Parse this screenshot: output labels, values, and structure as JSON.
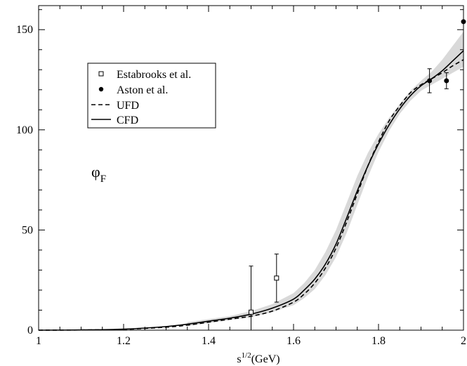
{
  "chart_data": {
    "type": "line",
    "title": "",
    "xlabel": {
      "base": "s",
      "sup": "1/2",
      "rest": "(GeV)"
    },
    "ylabel": "",
    "annotation": {
      "base": "φ",
      "sub": "F"
    },
    "xlim": [
      1.0,
      2.0
    ],
    "ylim": [
      0,
      162
    ],
    "xticks": [
      1,
      1.2,
      1.4,
      1.6,
      1.8,
      2
    ],
    "xtick_labels": [
      "1",
      "1.2",
      "1.4",
      "1.6",
      "1.8",
      "2"
    ],
    "yticks": [
      0,
      50,
      100,
      150
    ],
    "ytick_labels": [
      "0",
      "50",
      "100",
      "150"
    ],
    "grid": false,
    "legend_position": "top-left",
    "colors": {
      "line": "#000000",
      "band": "#d9d9d9"
    },
    "series": [
      {
        "name": "Estabrooks et al.",
        "kind": "points",
        "marker": "open-square",
        "x": [
          1.5,
          1.56
        ],
        "y": [
          9,
          26
        ],
        "yerr_low": [
          9,
          12
        ],
        "yerr_high": [
          23,
          12
        ]
      },
      {
        "name": "Aston et al.",
        "kind": "points",
        "marker": "filled-circle",
        "x": [
          1.92,
          1.96,
          2.0
        ],
        "y": [
          124.5,
          124.5,
          154
        ],
        "yerr_low": [
          6,
          4,
          0
        ],
        "yerr_high": [
          6,
          4,
          0
        ]
      },
      {
        "name": "UFD",
        "kind": "line",
        "style": "dashed",
        "x": [
          1.0,
          1.1,
          1.2,
          1.3,
          1.35,
          1.4,
          1.45,
          1.5,
          1.55,
          1.6,
          1.625,
          1.65,
          1.675,
          1.7,
          1.725,
          1.75,
          1.775,
          1.8,
          1.825,
          1.85,
          1.875,
          1.9,
          1.925,
          1.95,
          1.975,
          2.0
        ],
        "y": [
          0,
          0.1,
          0.4,
          1.5,
          2.5,
          4.0,
          5.5,
          7.0,
          9.5,
          14.0,
          18.0,
          23.5,
          31.0,
          41.0,
          54.0,
          68.0,
          82.0,
          94.0,
          104.5,
          112.0,
          118.5,
          122.5,
          125.5,
          128.5,
          132.0,
          135.0
        ]
      },
      {
        "name": "CFD",
        "kind": "line",
        "style": "solid",
        "x": [
          1.0,
          1.1,
          1.2,
          1.3,
          1.35,
          1.4,
          1.45,
          1.5,
          1.55,
          1.6,
          1.625,
          1.65,
          1.675,
          1.7,
          1.725,
          1.75,
          1.775,
          1.8,
          1.825,
          1.85,
          1.875,
          1.9,
          1.925,
          1.95,
          1.975,
          2.0
        ],
        "y": [
          0,
          0.1,
          0.5,
          1.8,
          3.0,
          4.5,
          6.0,
          8.0,
          11.0,
          15.5,
          20.0,
          25.5,
          33.0,
          43.0,
          56.0,
          69.5,
          82.0,
          93.0,
          102.5,
          110.5,
          117.0,
          122.0,
          125.5,
          129.5,
          134.5,
          139.5
        ]
      },
      {
        "name": "CFD uncertainty band",
        "kind": "band",
        "x": [
          1.35,
          1.4,
          1.45,
          1.5,
          1.55,
          1.6,
          1.625,
          1.65,
          1.675,
          1.7,
          1.725,
          1.75,
          1.775,
          1.8,
          1.825,
          1.85,
          1.875,
          1.9,
          1.925,
          1.95,
          1.975,
          2.0
        ],
        "y_low": [
          2.0,
          3.5,
          5.0,
          6.5,
          9.0,
          12.5,
          16.0,
          20.5,
          27.5,
          36.5,
          48.5,
          62.5,
          76.5,
          89.0,
          99.5,
          108.0,
          114.5,
          119.5,
          122.5,
          125.5,
          128.5,
          131.5
        ],
        "y_high": [
          4.0,
          5.5,
          7.0,
          9.5,
          13.0,
          18.5,
          23.5,
          30.0,
          39.0,
          50.0,
          63.5,
          77.0,
          88.5,
          98.0,
          106.0,
          113.0,
          119.5,
          124.5,
          129.0,
          135.0,
          142.0,
          149.0
        ]
      }
    ]
  }
}
